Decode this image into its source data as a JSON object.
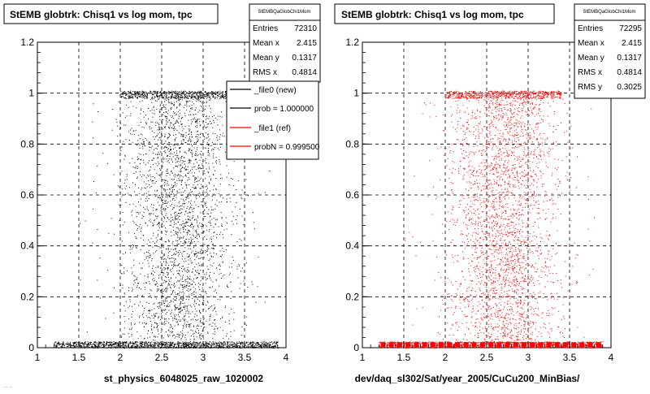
{
  "colors": {
    "file0": "#000000",
    "file1": "#ff0000",
    "frame": "#000000",
    "background": "#ffffff"
  },
  "footer_note": "... ..",
  "chart_data": [
    {
      "type": "scatter",
      "title": "StEMB globtrk: Chisq1 vs log mom, tpc",
      "xlabel": "st_physics_6048025_raw_1020002",
      "ylabel": "",
      "xlim": [
        1,
        4
      ],
      "ylim": [
        0,
        1.2
      ],
      "xticks": [
        "1",
        "1.5",
        "2",
        "2.5",
        "3",
        "3.5",
        "4"
      ],
      "yticks": [
        "0",
        "0.2",
        "0.4",
        "0.6",
        "0.8",
        "1",
        "1.2"
      ],
      "grid": true,
      "color": "#000000",
      "stats": {
        "name": "StEMBQaGlobChi1Mom",
        "rows": [
          {
            "label": "Entries",
            "value": "72310"
          },
          {
            "label": "Mean x",
            "value": "2.415"
          },
          {
            "label": "Mean y",
            "value": "0.1317"
          },
          {
            "label": "RMS x",
            "value": "0.4814"
          }
        ]
      },
      "legend": {
        "placement": "top-right",
        "entries": [
          {
            "label": "_file0 (new)",
            "color": "#000000"
          },
          {
            "label": "prob = 1.000000",
            "color": "#000000"
          },
          {
            "label": "_file1 (ref)",
            "color": "#ff0000"
          },
          {
            "label": "probN = 0.999500",
            "color": "#ff0000"
          }
        ]
      },
      "distribution": {
        "x_range": [
          1.2,
          3.9
        ],
        "bottom_band_y": [
          0.0,
          0.025
        ],
        "top_band_y": [
          0.98,
          1.01
        ],
        "body_x_range": [
          2.0,
          3.5
        ]
      }
    },
    {
      "type": "scatter",
      "title": "StEMB globtrk: Chisq1 vs log mom, tpc",
      "xlabel": "dev/daq_sl302/Sat/year_2005/CuCu200_MinBias/",
      "ylabel": "",
      "xlim": [
        1,
        4
      ],
      "ylim": [
        0,
        1.2
      ],
      "xticks": [
        "1",
        "1.5",
        "2",
        "2.5",
        "3",
        "3.5",
        "4"
      ],
      "yticks": [
        "0",
        "0.2",
        "0.4",
        "0.6",
        "0.8",
        "1",
        "1.2"
      ],
      "grid": true,
      "color": "#ff0000",
      "stats": {
        "name": "StEMBQaGlobChi1Mom",
        "rows": [
          {
            "label": "Entries",
            "value": "72295"
          },
          {
            "label": "Mean x",
            "value": "2.415"
          },
          {
            "label": "Mean y",
            "value": "0.1317"
          },
          {
            "label": "RMS x",
            "value": "0.4814"
          },
          {
            "label": "RMS y",
            "value": "0.3025"
          }
        ]
      },
      "distribution": {
        "x_range": [
          1.2,
          3.9
        ],
        "bottom_band_y": [
          0.0,
          0.025
        ],
        "top_band_y": [
          0.98,
          1.01
        ],
        "body_x_range": [
          2.0,
          3.5
        ]
      }
    }
  ]
}
